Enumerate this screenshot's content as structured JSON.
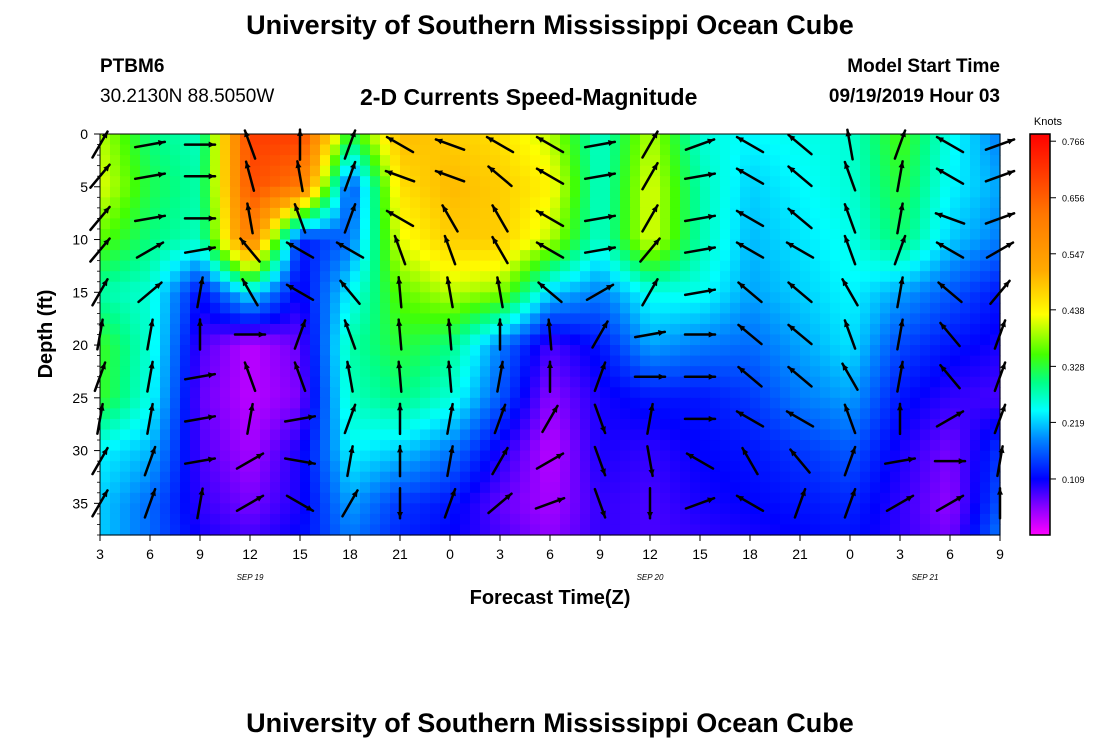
{
  "header": {
    "title": "University of Southern Mississippi Ocean Cube",
    "station_id": "PTBM6",
    "station_coords": "30.2130N 88.5050W",
    "plot_title": "2-D Currents Speed-Magnitude",
    "model_start_label": "Model Start Time",
    "model_start_value": "09/19/2019 Hour 03"
  },
  "footer": {
    "title": "University of Southern Mississippi Ocean Cube"
  },
  "chart_data": {
    "type": "heatmap",
    "title": "2-D Currents Speed-Magnitude",
    "xlabel": "Forecast Time(Z)",
    "ylabel": "Depth (ft)",
    "colorbar_label": "Knots",
    "x_ticks": [
      "3",
      "6",
      "9",
      "12",
      "15",
      "18",
      "21",
      "0",
      "3",
      "6",
      "9",
      "12",
      "15",
      "18",
      "21",
      "0",
      "3",
      "6",
      "9"
    ],
    "x_range_hours": [
      0,
      54
    ],
    "date_labels": [
      {
        "label": "SEP 19",
        "hour": 9
      },
      {
        "label": "SEP 20",
        "hour": 33
      },
      {
        "label": "SEP 21",
        "hour": 49.5
      }
    ],
    "y_ticks": [
      0,
      5,
      10,
      15,
      20,
      25,
      30,
      35
    ],
    "ylim": [
      0,
      38
    ],
    "y_inverted": true,
    "colorbar_ticks": [
      0.766,
      0.656,
      0.547,
      0.438,
      0.328,
      0.219,
      0.109
    ],
    "colorbar_range": [
      0.0,
      0.78
    ],
    "speed_grid": {
      "times": [
        0,
        3,
        6,
        9,
        12,
        15,
        18,
        21,
        24,
        27,
        30,
        33,
        36,
        39,
        42,
        45,
        48,
        51,
        54
      ],
      "depths": [
        0,
        5,
        10,
        15,
        20,
        25,
        30,
        35,
        38
      ],
      "values": [
        [
          0.4,
          0.3,
          0.27,
          0.7,
          0.7,
          0.32,
          0.5,
          0.48,
          0.46,
          0.4,
          0.26,
          0.4,
          0.26,
          0.24,
          0.25,
          0.26,
          0.35,
          0.25,
          0.18
        ],
        [
          0.42,
          0.32,
          0.28,
          0.68,
          0.62,
          0.14,
          0.46,
          0.5,
          0.48,
          0.44,
          0.26,
          0.42,
          0.28,
          0.22,
          0.24,
          0.26,
          0.33,
          0.24,
          0.2
        ],
        [
          0.36,
          0.3,
          0.27,
          0.62,
          0.12,
          0.17,
          0.42,
          0.48,
          0.48,
          0.4,
          0.26,
          0.42,
          0.28,
          0.21,
          0.23,
          0.25,
          0.31,
          0.22,
          0.18
        ],
        [
          0.28,
          0.26,
          0.11,
          0.24,
          0.1,
          0.24,
          0.36,
          0.4,
          0.38,
          0.22,
          0.18,
          0.25,
          0.25,
          0.2,
          0.22,
          0.24,
          0.2,
          0.16,
          0.12
        ],
        [
          0.34,
          0.26,
          0.08,
          0.03,
          0.07,
          0.28,
          0.33,
          0.3,
          0.18,
          0.08,
          0.12,
          0.2,
          0.18,
          0.17,
          0.2,
          0.23,
          0.15,
          0.12,
          0.1
        ],
        [
          0.34,
          0.25,
          0.07,
          0.03,
          0.06,
          0.27,
          0.3,
          0.26,
          0.16,
          0.05,
          0.1,
          0.12,
          0.12,
          0.14,
          0.18,
          0.2,
          0.12,
          0.09,
          0.08
        ],
        [
          0.24,
          0.21,
          0.08,
          0.04,
          0.1,
          0.24,
          0.22,
          0.18,
          0.1,
          0.03,
          0.1,
          0.09,
          0.11,
          0.12,
          0.14,
          0.16,
          0.1,
          0.06,
          0.14
        ],
        [
          0.22,
          0.17,
          0.09,
          0.06,
          0.1,
          0.2,
          0.14,
          0.12,
          0.07,
          0.04,
          0.09,
          0.08,
          0.1,
          0.11,
          0.12,
          0.13,
          0.09,
          0.05,
          0.16
        ],
        [
          0.22,
          0.17,
          0.1,
          0.08,
          0.11,
          0.18,
          0.13,
          0.11,
          0.08,
          0.05,
          0.09,
          0.08,
          0.09,
          0.1,
          0.11,
          0.12,
          0.09,
          0.06,
          0.18
        ]
      ]
    },
    "vector_times": [
      0,
      3,
      6,
      9,
      12,
      15,
      18,
      21,
      24,
      27,
      30,
      33,
      36,
      39,
      42,
      45,
      48,
      51,
      54
    ],
    "vector_depths": [
      1,
      4,
      8,
      11,
      15,
      19,
      23,
      27,
      31,
      35
    ],
    "vector_directions_deg": [
      [
        30,
        80,
        90,
        340,
        0,
        20,
        300,
        290,
        300,
        300,
        80,
        30,
        70,
        300,
        310,
        350,
        20,
        300,
        70
      ],
      [
        40,
        80,
        90,
        345,
        350,
        20,
        290,
        290,
        310,
        300,
        80,
        30,
        80,
        300,
        310,
        340,
        10,
        300,
        70
      ],
      [
        40,
        80,
        90,
        350,
        340,
        20,
        300,
        330,
        330,
        300,
        80,
        30,
        80,
        300,
        310,
        340,
        10,
        290,
        70
      ],
      [
        40,
        60,
        80,
        320,
        300,
        300,
        340,
        340,
        330,
        300,
        80,
        40,
        80,
        300,
        300,
        340,
        20,
        300,
        60
      ],
      [
        30,
        50,
        10,
        330,
        300,
        320,
        355,
        350,
        350,
        310,
        60,
        30,
        80,
        310,
        310,
        330,
        10,
        310,
        40
      ],
      [
        10,
        10,
        0,
        90,
        20,
        340,
        355,
        355,
        0,
        355,
        30,
        80,
        90,
        310,
        310,
        340,
        10,
        320,
        20
      ],
      [
        20,
        10,
        80,
        340,
        340,
        350,
        355,
        355,
        10,
        0,
        20,
        90,
        90,
        310,
        310,
        330,
        10,
        320,
        20
      ],
      [
        10,
        10,
        80,
        10,
        80,
        20,
        0,
        10,
        20,
        30,
        160,
        10,
        90,
        300,
        300,
        340,
        0,
        60,
        20
      ],
      [
        30,
        20,
        80,
        60,
        100,
        10,
        0,
        10,
        30,
        60,
        160,
        170,
        300,
        330,
        320,
        20,
        80,
        90,
        10
      ],
      [
        30,
        20,
        10,
        60,
        120,
        30,
        180,
        20,
        50,
        70,
        160,
        180,
        70,
        300,
        20,
        20,
        60,
        60,
        0
      ]
    ]
  }
}
